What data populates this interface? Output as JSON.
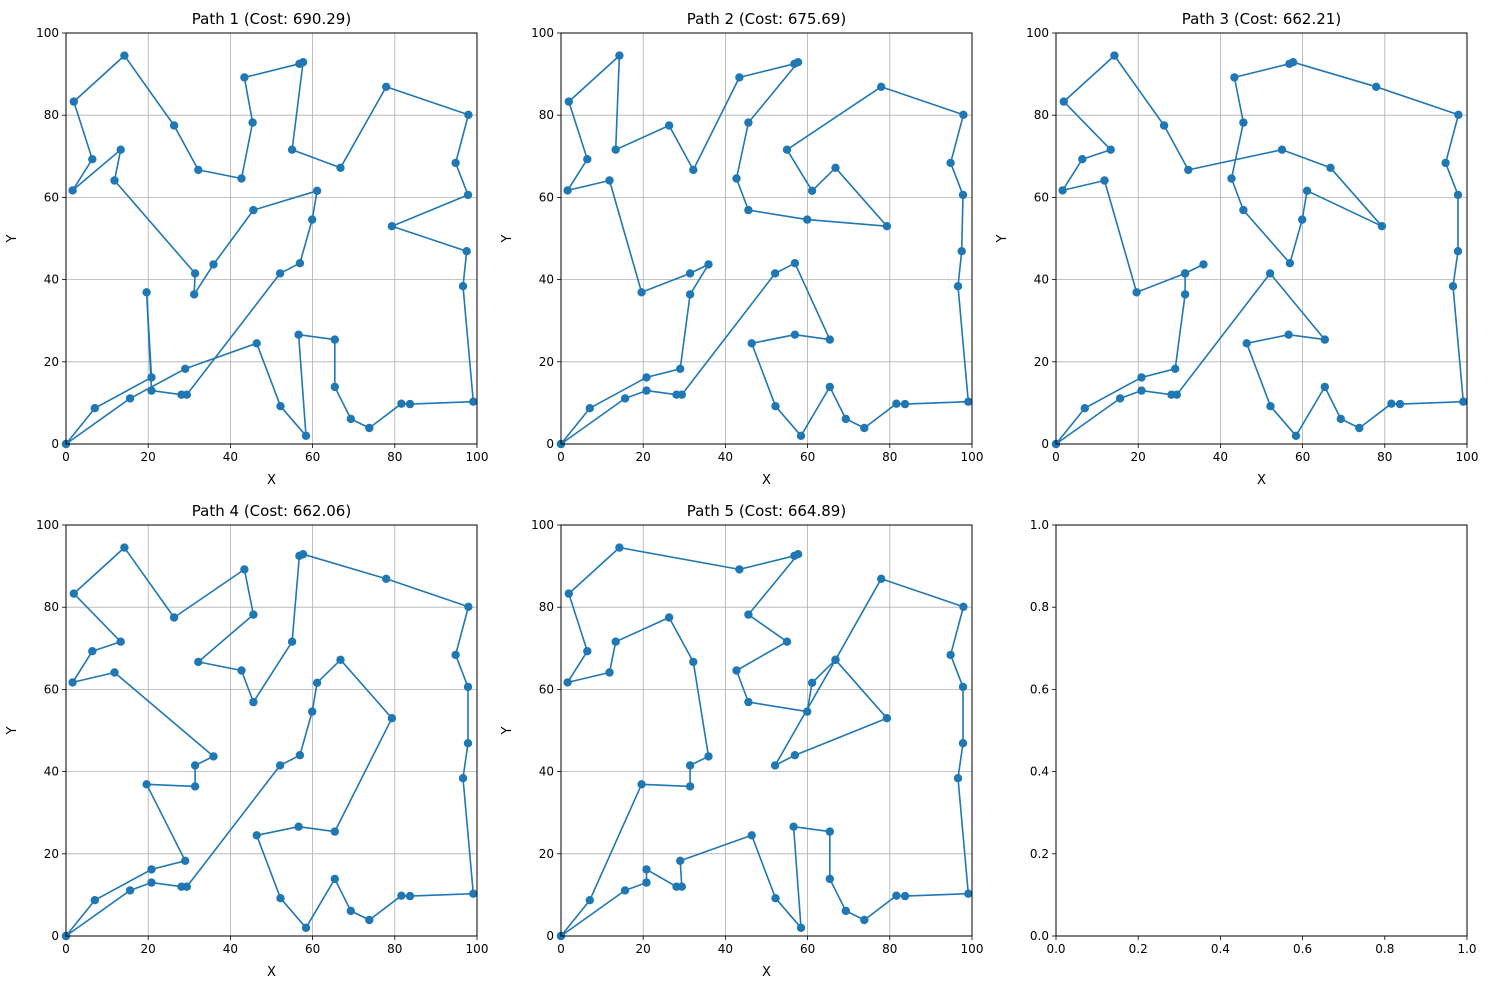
{
  "colors": {
    "series": "#1f77b4",
    "grid": "#b0b0b0",
    "axes": "#000000"
  },
  "chart_data": [
    {
      "type": "line",
      "title": "Path 1 (Cost: 690.29)",
      "xlabel": "X",
      "ylabel": "Y",
      "xlim": [
        0,
        100
      ],
      "ylim": [
        0,
        100
      ],
      "grid": true,
      "xticks": [
        "0",
        "20",
        "40",
        "60",
        "80",
        "100"
      ],
      "yticks": [
        "0",
        "20",
        "40",
        "60",
        "80",
        "100"
      ],
      "points": [
        [
          0,
          0
        ],
        [
          7,
          8.7
        ],
        [
          20.8,
          16.2
        ],
        [
          19.6,
          36.9
        ],
        [
          20.8,
          13
        ],
        [
          28.1,
          12
        ],
        [
          29.4,
          12
        ],
        [
          52.1,
          41.5
        ],
        [
          56.9,
          44
        ],
        [
          59.9,
          54.6
        ],
        [
          61.1,
          61.6
        ],
        [
          45.6,
          56.9
        ],
        [
          35.9,
          43.7
        ],
        [
          31.2,
          36.4
        ],
        [
          31.4,
          41.5
        ],
        [
          11.8,
          64.1
        ],
        [
          13.3,
          71.6
        ],
        [
          1.6,
          61.7
        ],
        [
          6.4,
          69.3
        ],
        [
          1.9,
          83.3
        ],
        [
          14.2,
          94.5
        ],
        [
          26.3,
          77.5
        ],
        [
          32.2,
          66.7
        ],
        [
          42.7,
          64.6
        ],
        [
          45.4,
          78.2
        ],
        [
          43.4,
          89.2
        ],
        [
          56.8,
          92.5
        ],
        [
          57.7,
          92.9
        ],
        [
          55,
          71.6
        ],
        [
          66.8,
          67.2
        ],
        [
          77.9,
          86.9
        ],
        [
          97.9,
          80.1
        ],
        [
          94.8,
          68.4
        ],
        [
          97.8,
          60.6
        ],
        [
          79.3,
          53
        ],
        [
          97.5,
          46.9
        ],
        [
          96.6,
          38.4
        ],
        [
          99.1,
          10.3
        ],
        [
          83.7,
          9.7
        ],
        [
          81.6,
          9.8
        ],
        [
          73.8,
          3.9
        ],
        [
          69.3,
          6.1
        ],
        [
          65.4,
          13.9
        ],
        [
          65.4,
          25.4
        ],
        [
          56.6,
          26.6
        ],
        [
          58.4,
          2
        ],
        [
          52.2,
          9.2
        ],
        [
          46.4,
          24.5
        ],
        [
          29,
          18.3
        ],
        [
          15.6,
          11.1
        ],
        [
          0,
          0
        ]
      ]
    },
    {
      "type": "line",
      "title": "Path 2 (Cost: 675.69)",
      "xlabel": "X",
      "ylabel": "Y",
      "xlim": [
        0,
        100
      ],
      "ylim": [
        0,
        100
      ],
      "grid": true,
      "xticks": [
        "0",
        "20",
        "40",
        "60",
        "80",
        "100"
      ],
      "yticks": [
        "0",
        "20",
        "40",
        "60",
        "80",
        "100"
      ],
      "points": [
        [
          0,
          0
        ],
        [
          7,
          8.7
        ],
        [
          20.8,
          16.2
        ],
        [
          29,
          18.3
        ],
        [
          31.4,
          36.4
        ],
        [
          35.9,
          43.7
        ],
        [
          31.4,
          41.5
        ],
        [
          19.6,
          36.9
        ],
        [
          11.8,
          64.1
        ],
        [
          1.6,
          61.7
        ],
        [
          6.4,
          69.3
        ],
        [
          1.9,
          83.3
        ],
        [
          14.2,
          94.5
        ],
        [
          13.3,
          71.6
        ],
        [
          26.3,
          77.5
        ],
        [
          32.2,
          66.7
        ],
        [
          43.4,
          89.2
        ],
        [
          56.8,
          92.5
        ],
        [
          57.7,
          92.9
        ],
        [
          45.6,
          78.2
        ],
        [
          42.7,
          64.6
        ],
        [
          45.6,
          56.9
        ],
        [
          59.9,
          54.6
        ],
        [
          79.3,
          53
        ],
        [
          66.8,
          67.2
        ],
        [
          61.1,
          61.6
        ],
        [
          55,
          71.6
        ],
        [
          77.9,
          86.9
        ],
        [
          97.9,
          80.1
        ],
        [
          94.8,
          68.4
        ],
        [
          97.8,
          60.6
        ],
        [
          97.5,
          46.9
        ],
        [
          96.6,
          38.4
        ],
        [
          99.1,
          10.3
        ],
        [
          83.7,
          9.7
        ],
        [
          81.6,
          9.8
        ],
        [
          73.8,
          3.9
        ],
        [
          69.3,
          6.1
        ],
        [
          65.4,
          13.9
        ],
        [
          58.4,
          2
        ],
        [
          52.2,
          9.2
        ],
        [
          46.4,
          24.5
        ],
        [
          56.9,
          26.6
        ],
        [
          65.4,
          25.4
        ],
        [
          56.9,
          44
        ],
        [
          52.1,
          41.5
        ],
        [
          29.4,
          12
        ],
        [
          28.1,
          12
        ],
        [
          20.8,
          13
        ],
        [
          15.6,
          11.1
        ],
        [
          0,
          0
        ]
      ]
    },
    {
      "type": "line",
      "title": "Path 3 (Cost: 662.21)",
      "xlabel": "X",
      "ylabel": "Y",
      "xlim": [
        0,
        100
      ],
      "ylim": [
        0,
        100
      ],
      "grid": true,
      "xticks": [
        "0",
        "20",
        "40",
        "60",
        "80",
        "100"
      ],
      "yticks": [
        "0",
        "20",
        "40",
        "60",
        "80",
        "100"
      ],
      "points": [
        [
          0,
          0
        ],
        [
          7,
          8.7
        ],
        [
          20.8,
          16.2
        ],
        [
          29,
          18.3
        ],
        [
          31.4,
          36.4
        ],
        [
          31.4,
          41.5
        ],
        [
          35.9,
          43.7
        ],
        [
          31.4,
          41.5
        ],
        [
          19.6,
          36.9
        ],
        [
          11.8,
          64.1
        ],
        [
          1.6,
          61.7
        ],
        [
          6.4,
          69.3
        ],
        [
          13.3,
          71.6
        ],
        [
          1.9,
          83.3
        ],
        [
          14.2,
          94.5
        ],
        [
          26.3,
          77.5
        ],
        [
          32.2,
          66.7
        ],
        [
          55,
          71.6
        ],
        [
          66.8,
          67.2
        ],
        [
          79.3,
          53
        ],
        [
          61.1,
          61.6
        ],
        [
          59.9,
          54.6
        ],
        [
          56.9,
          44
        ],
        [
          45.6,
          56.9
        ],
        [
          42.7,
          64.6
        ],
        [
          45.6,
          78.2
        ],
        [
          43.4,
          89.2
        ],
        [
          56.8,
          92.5
        ],
        [
          57.7,
          92.9
        ],
        [
          77.9,
          86.9
        ],
        [
          97.9,
          80.1
        ],
        [
          94.8,
          68.4
        ],
        [
          97.8,
          60.6
        ],
        [
          97.8,
          46.9
        ],
        [
          96.6,
          38.4
        ],
        [
          99.1,
          10.3
        ],
        [
          83.7,
          9.7
        ],
        [
          81.6,
          9.8
        ],
        [
          73.8,
          3.9
        ],
        [
          69.3,
          6.1
        ],
        [
          65.4,
          13.9
        ],
        [
          58.4,
          2
        ],
        [
          52.2,
          9.2
        ],
        [
          46.4,
          24.5
        ],
        [
          56.6,
          26.6
        ],
        [
          65.4,
          25.4
        ],
        [
          52.1,
          41.5
        ],
        [
          29.4,
          12
        ],
        [
          28.1,
          12
        ],
        [
          20.8,
          13
        ],
        [
          15.6,
          11.1
        ],
        [
          0,
          0
        ]
      ]
    },
    {
      "type": "line",
      "title": "Path 4 (Cost: 662.06)",
      "xlabel": "X",
      "ylabel": "Y",
      "xlim": [
        0,
        100
      ],
      "ylim": [
        0,
        100
      ],
      "grid": true,
      "xticks": [
        "0",
        "20",
        "40",
        "60",
        "80",
        "100"
      ],
      "yticks": [
        "0",
        "20",
        "40",
        "60",
        "80",
        "100"
      ],
      "points": [
        [
          0,
          0
        ],
        [
          7,
          8.7
        ],
        [
          20.8,
          16.2
        ],
        [
          29,
          18.3
        ],
        [
          19.6,
          36.9
        ],
        [
          31.4,
          36.4
        ],
        [
          31.4,
          41.5
        ],
        [
          35.9,
          43.7
        ],
        [
          11.8,
          64.1
        ],
        [
          1.6,
          61.7
        ],
        [
          6.4,
          69.3
        ],
        [
          13.3,
          71.6
        ],
        [
          1.9,
          83.3
        ],
        [
          14.2,
          94.5
        ],
        [
          26.3,
          77.5
        ],
        [
          43.4,
          89.2
        ],
        [
          45.6,
          78.2
        ],
        [
          32.2,
          66.7
        ],
        [
          42.7,
          64.6
        ],
        [
          45.6,
          56.9
        ],
        [
          55,
          71.6
        ],
        [
          56.8,
          92.5
        ],
        [
          57.7,
          92.9
        ],
        [
          77.9,
          86.9
        ],
        [
          97.9,
          80.1
        ],
        [
          94.8,
          68.4
        ],
        [
          97.8,
          60.6
        ],
        [
          97.8,
          46.9
        ],
        [
          96.6,
          38.4
        ],
        [
          99.1,
          10.3
        ],
        [
          83.7,
          9.7
        ],
        [
          81.6,
          9.8
        ],
        [
          73.8,
          3.9
        ],
        [
          69.3,
          6.1
        ],
        [
          65.4,
          13.9
        ],
        [
          58.4,
          2
        ],
        [
          52.2,
          9.2
        ],
        [
          46.4,
          24.5
        ],
        [
          56.6,
          26.6
        ],
        [
          65.4,
          25.4
        ],
        [
          79.3,
          53
        ],
        [
          66.8,
          67.2
        ],
        [
          61.1,
          61.6
        ],
        [
          59.9,
          54.6
        ],
        [
          56.9,
          44
        ],
        [
          52.1,
          41.5
        ],
        [
          29.4,
          12
        ],
        [
          28.1,
          12
        ],
        [
          20.8,
          13
        ],
        [
          15.6,
          11.1
        ],
        [
          0,
          0
        ]
      ]
    },
    {
      "type": "line",
      "title": "Path 5 (Cost: 664.89)",
      "xlabel": "X",
      "ylabel": "Y",
      "xlim": [
        0,
        100
      ],
      "ylim": [
        0,
        100
      ],
      "grid": true,
      "xticks": [
        "0",
        "20",
        "40",
        "60",
        "80",
        "100"
      ],
      "yticks": [
        "0",
        "20",
        "40",
        "60",
        "80",
        "100"
      ],
      "points": [
        [
          0,
          0
        ],
        [
          7,
          8.7
        ],
        [
          19.6,
          36.9
        ],
        [
          31.4,
          36.4
        ],
        [
          31.4,
          41.5
        ],
        [
          35.9,
          43.7
        ],
        [
          32.2,
          66.7
        ],
        [
          26.3,
          77.5
        ],
        [
          13.3,
          71.6
        ],
        [
          11.8,
          64.1
        ],
        [
          1.6,
          61.7
        ],
        [
          6.4,
          69.3
        ],
        [
          1.9,
          83.3
        ],
        [
          14.2,
          94.5
        ],
        [
          43.4,
          89.2
        ],
        [
          56.8,
          92.5
        ],
        [
          57.7,
          92.9
        ],
        [
          45.6,
          78.2
        ],
        [
          55,
          71.6
        ],
        [
          42.7,
          64.6
        ],
        [
          45.6,
          56.9
        ],
        [
          59.9,
          54.6
        ],
        [
          61.1,
          61.6
        ],
        [
          66.8,
          67.2
        ],
        [
          79.3,
          53
        ],
        [
          56.9,
          44
        ],
        [
          52.1,
          41.5
        ],
        [
          66.8,
          67.2
        ],
        [
          77.9,
          86.9
        ],
        [
          97.9,
          80.1
        ],
        [
          94.8,
          68.4
        ],
        [
          97.8,
          60.6
        ],
        [
          97.8,
          46.9
        ],
        [
          96.6,
          38.4
        ],
        [
          99.1,
          10.3
        ],
        [
          83.7,
          9.7
        ],
        [
          81.6,
          9.8
        ],
        [
          73.8,
          3.9
        ],
        [
          69.3,
          6.1
        ],
        [
          65.4,
          13.9
        ],
        [
          65.4,
          25.4
        ],
        [
          56.6,
          26.6
        ],
        [
          58.4,
          2
        ],
        [
          52.2,
          9.2
        ],
        [
          46.4,
          24.5
        ],
        [
          29,
          18.3
        ],
        [
          29.4,
          12
        ],
        [
          28.1,
          12
        ],
        [
          20.8,
          16.2
        ],
        [
          20.8,
          13
        ],
        [
          15.6,
          11.1
        ],
        [
          0,
          0
        ]
      ]
    },
    {
      "type": "empty",
      "title": "",
      "xlabel": "",
      "ylabel": "",
      "xlim": [
        0,
        1
      ],
      "ylim": [
        0,
        1
      ],
      "grid": false,
      "xticks": [
        "0.0",
        "0.2",
        "0.4",
        "0.6",
        "0.8",
        "1.0"
      ],
      "yticks": [
        "0.0",
        "0.2",
        "0.4",
        "0.6",
        "0.8",
        "1.0"
      ],
      "points": []
    }
  ]
}
